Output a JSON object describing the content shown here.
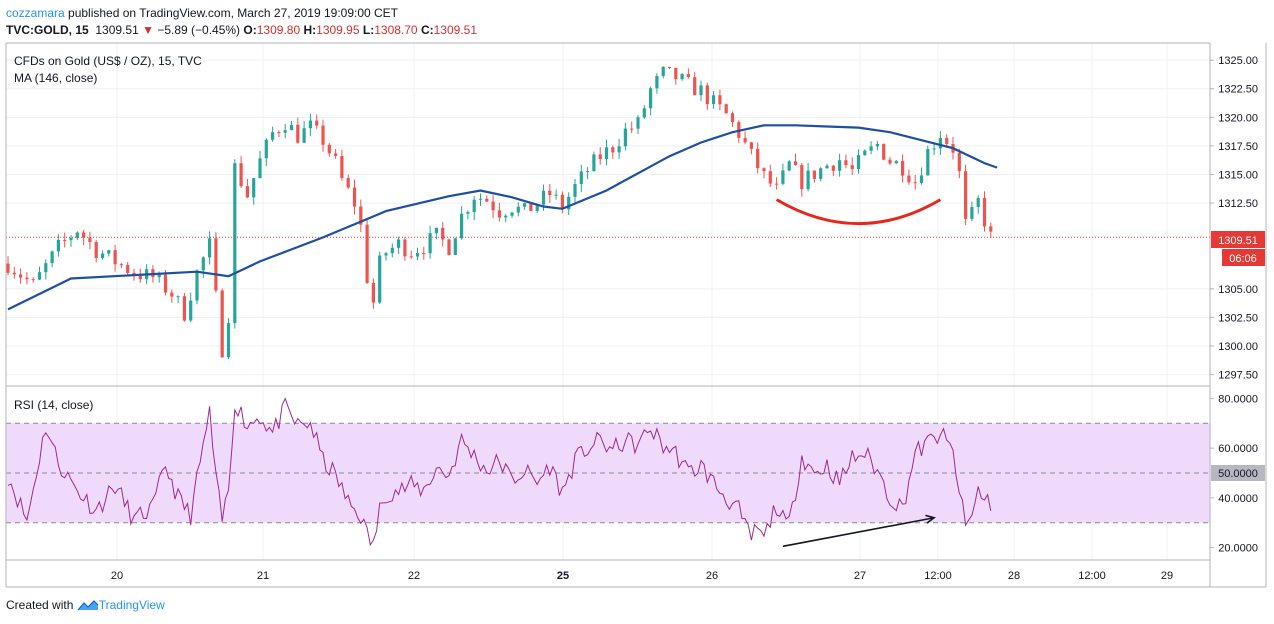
{
  "header": {
    "author": "cozzamara",
    "published": "published on TradingView.com, March 27, 2019 19:09:00 CET",
    "symbol": "TVC:GOLD, 15",
    "last": "1309.51",
    "change": "−5.89 (−0.45%)",
    "o_label": "O:",
    "o_value": "1309.80",
    "h_label": "H:",
    "h_value": "1309.95",
    "l_label": "L:",
    "l_value": "1308.70",
    "c_label": "C:",
    "c_value": "1309.51"
  },
  "footer": {
    "created_with": "Created with",
    "brand": "TradingView"
  },
  "colors": {
    "up": "#26a69a",
    "down": "#ef5350",
    "ma": "#1e4fa3",
    "rsi": "#9c2a8e",
    "rsi_band": "#efdafc",
    "arc": "#e8261c"
  },
  "chart_data": [
    {
      "type": "candlestick",
      "title": "CFDs on Gold (US$ / OZ), 15, TVC",
      "indicator": "MA (146, close)",
      "ylim": [
        1296.5,
        1326.5
      ],
      "yticks": [
        "1325.00",
        "1322.50",
        "1320.00",
        "1317.50",
        "1315.00",
        "1312.50",
        "1305.00",
        "1302.50",
        "1300.00",
        "1297.50"
      ],
      "last_price_label": "1309.51",
      "countdown_label": "06:06",
      "x_labels": [
        "20",
        "21",
        "22",
        "25",
        "26",
        "27",
        "12:00",
        "28",
        "12:00",
        "29"
      ],
      "close_path": [
        [
          0,
          1307.2
        ],
        [
          4,
          1305.3
        ],
        [
          8,
          1308.6
        ],
        [
          11,
          1310.2
        ],
        [
          14,
          1308.4
        ],
        [
          17,
          1307.4
        ],
        [
          20,
          1306.4
        ],
        [
          23,
          1306.0
        ],
        [
          26,
          1304.6
        ],
        [
          28,
          1302.9
        ],
        [
          30,
          1306.4
        ],
        [
          32,
          1308.8
        ],
        [
          33,
          1304.2
        ],
        [
          34,
          1299.8
        ],
        [
          35,
          1302.8
        ],
        [
          36,
          1315.6
        ],
        [
          38,
          1313.2
        ],
        [
          40,
          1316.2
        ],
        [
          42,
          1318.6
        ],
        [
          44,
          1319.6
        ],
        [
          46,
          1318.4
        ],
        [
          48,
          1319.1
        ],
        [
          50,
          1318.0
        ],
        [
          52,
          1316.0
        ],
        [
          53,
          1314.5
        ],
        [
          55,
          1312.5
        ],
        [
          56,
          1310.4
        ],
        [
          57,
          1306.0
        ],
        [
          58,
          1303.8
        ],
        [
          59,
          1307.2
        ],
        [
          60,
          1308.2
        ],
        [
          62,
          1308.9
        ],
        [
          64,
          1308.3
        ],
        [
          66,
          1308.8
        ],
        [
          68,
          1309.6
        ],
        [
          70,
          1308.7
        ],
        [
          72,
          1311.4
        ],
        [
          74,
          1313.2
        ],
        [
          76,
          1312.8
        ],
        [
          78,
          1311.8
        ],
        [
          80,
          1312.2
        ],
        [
          82,
          1311.7
        ],
        [
          84,
          1312.5
        ],
        [
          86,
          1313.3
        ],
        [
          88,
          1312.2
        ],
        [
          90,
          1313.9
        ],
        [
          92,
          1315.4
        ],
        [
          94,
          1316.6
        ],
        [
          96,
          1317.4
        ],
        [
          98,
          1318.8
        ],
        [
          100,
          1319.4
        ],
        [
          102,
          1322.4
        ],
        [
          104,
          1323.8
        ],
        [
          106,
          1323.5
        ],
        [
          108,
          1322.8
        ],
        [
          110,
          1322.3
        ],
        [
          112,
          1321.2
        ],
        [
          114,
          1320.2
        ],
        [
          116,
          1318.6
        ],
        [
          118,
          1316.6
        ],
        [
          120,
          1314.8
        ],
        [
          122,
          1313.6
        ],
        [
          124,
          1315.8
        ],
        [
          126,
          1314.4
        ],
        [
          128,
          1315.1
        ],
        [
          130,
          1315.8
        ],
        [
          132,
          1316.3
        ],
        [
          134,
          1315.3
        ],
        [
          136,
          1316.6
        ],
        [
          138,
          1317.6
        ],
        [
          140,
          1316.2
        ],
        [
          142,
          1315.7
        ],
        [
          144,
          1314.4
        ],
        [
          146,
          1317.0
        ],
        [
          148,
          1318.6
        ],
        [
          150,
          1317.3
        ],
        [
          151,
          1315.0
        ],
        [
          152,
          1310.6
        ],
        [
          153,
          1311.4
        ],
        [
          154,
          1312.6
        ],
        [
          155,
          1311.0
        ],
        [
          156,
          1309.5
        ]
      ],
      "ma_path": [
        [
          0,
          1303.2
        ],
        [
          10,
          1305.9
        ],
        [
          20,
          1306.2
        ],
        [
          30,
          1306.5
        ],
        [
          35,
          1306.1
        ],
        [
          40,
          1307.4
        ],
        [
          50,
          1309.5
        ],
        [
          60,
          1311.8
        ],
        [
          70,
          1313.1
        ],
        [
          75,
          1313.6
        ],
        [
          80,
          1313.0
        ],
        [
          85,
          1312.2
        ],
        [
          88,
          1312.0
        ],
        [
          95,
          1313.6
        ],
        [
          100,
          1315.1
        ],
        [
          105,
          1316.6
        ],
        [
          110,
          1317.8
        ],
        [
          115,
          1318.7
        ],
        [
          120,
          1319.3
        ],
        [
          125,
          1319.3
        ],
        [
          130,
          1319.2
        ],
        [
          135,
          1319.1
        ],
        [
          140,
          1318.7
        ],
        [
          145,
          1318.0
        ],
        [
          150,
          1317.3
        ],
        [
          155,
          1316.0
        ],
        [
          157,
          1315.6
        ]
      ],
      "annotation_arc": {
        "from": [
          122,
          1312.8
        ],
        "apex": [
          135,
          1310.7
        ],
        "to": [
          148,
          1312.8
        ]
      }
    },
    {
      "type": "line",
      "title": "RSI (14, close)",
      "ylim": [
        15,
        85
      ],
      "yticks": [
        "80.0000",
        "60.0000",
        "40.0000",
        "20.0000"
      ],
      "mid_label": "50.0000",
      "band": [
        30,
        70
      ],
      "levels": [
        30,
        50,
        70
      ],
      "path": [
        [
          0,
          49
        ],
        [
          3,
          31
        ],
        [
          6,
          69
        ],
        [
          8,
          54
        ],
        [
          11,
          43
        ],
        [
          14,
          35
        ],
        [
          17,
          45
        ],
        [
          20,
          31
        ],
        [
          23,
          36
        ],
        [
          25,
          53
        ],
        [
          27,
          40
        ],
        [
          29,
          33
        ],
        [
          31,
          61
        ],
        [
          32,
          74
        ],
        [
          33,
          47
        ],
        [
          34,
          31
        ],
        [
          35,
          43
        ],
        [
          36,
          79
        ],
        [
          38,
          69
        ],
        [
          40,
          73
        ],
        [
          42,
          66
        ],
        [
          44,
          76
        ],
        [
          46,
          69
        ],
        [
          48,
          70
        ],
        [
          50,
          55
        ],
        [
          52,
          49
        ],
        [
          54,
          38
        ],
        [
          56,
          33
        ],
        [
          57,
          25
        ],
        [
          58,
          21
        ],
        [
          59,
          35
        ],
        [
          60,
          42
        ],
        [
          62,
          43
        ],
        [
          64,
          45
        ],
        [
          66,
          43
        ],
        [
          68,
          52
        ],
        [
          70,
          49
        ],
        [
          72,
          63
        ],
        [
          74,
          57
        ],
        [
          76,
          51
        ],
        [
          78,
          55
        ],
        [
          80,
          47
        ],
        [
          82,
          51
        ],
        [
          84,
          46
        ],
        [
          86,
          53
        ],
        [
          88,
          42
        ],
        [
          90,
          55
        ],
        [
          92,
          60
        ],
        [
          94,
          63
        ],
        [
          96,
          59
        ],
        [
          98,
          63
        ],
        [
          100,
          61
        ],
        [
          102,
          68
        ],
        [
          104,
          61
        ],
        [
          106,
          58
        ],
        [
          108,
          50
        ],
        [
          110,
          53
        ],
        [
          112,
          46
        ],
        [
          114,
          40
        ],
        [
          116,
          35
        ],
        [
          117,
          28
        ],
        [
          118,
          24
        ],
        [
          119,
          28
        ],
        [
          120,
          23
        ],
        [
          121,
          31
        ],
        [
          122,
          37
        ],
        [
          123,
          31
        ],
        [
          124,
          29
        ],
        [
          126,
          57
        ],
        [
          128,
          50
        ],
        [
          130,
          53
        ],
        [
          132,
          46
        ],
        [
          134,
          56
        ],
        [
          136,
          58
        ],
        [
          138,
          51
        ],
        [
          140,
          40
        ],
        [
          142,
          36
        ],
        [
          144,
          58
        ],
        [
          146,
          62
        ],
        [
          148,
          66
        ],
        [
          150,
          58
        ],
        [
          151,
          43
        ],
        [
          152,
          28
        ],
        [
          153,
          33
        ],
        [
          154,
          43
        ],
        [
          155,
          40
        ],
        [
          156,
          38
        ]
      ],
      "annotation_arrow": {
        "from": [
          123,
          20.5
        ],
        "to": [
          147,
          32
        ]
      }
    }
  ]
}
